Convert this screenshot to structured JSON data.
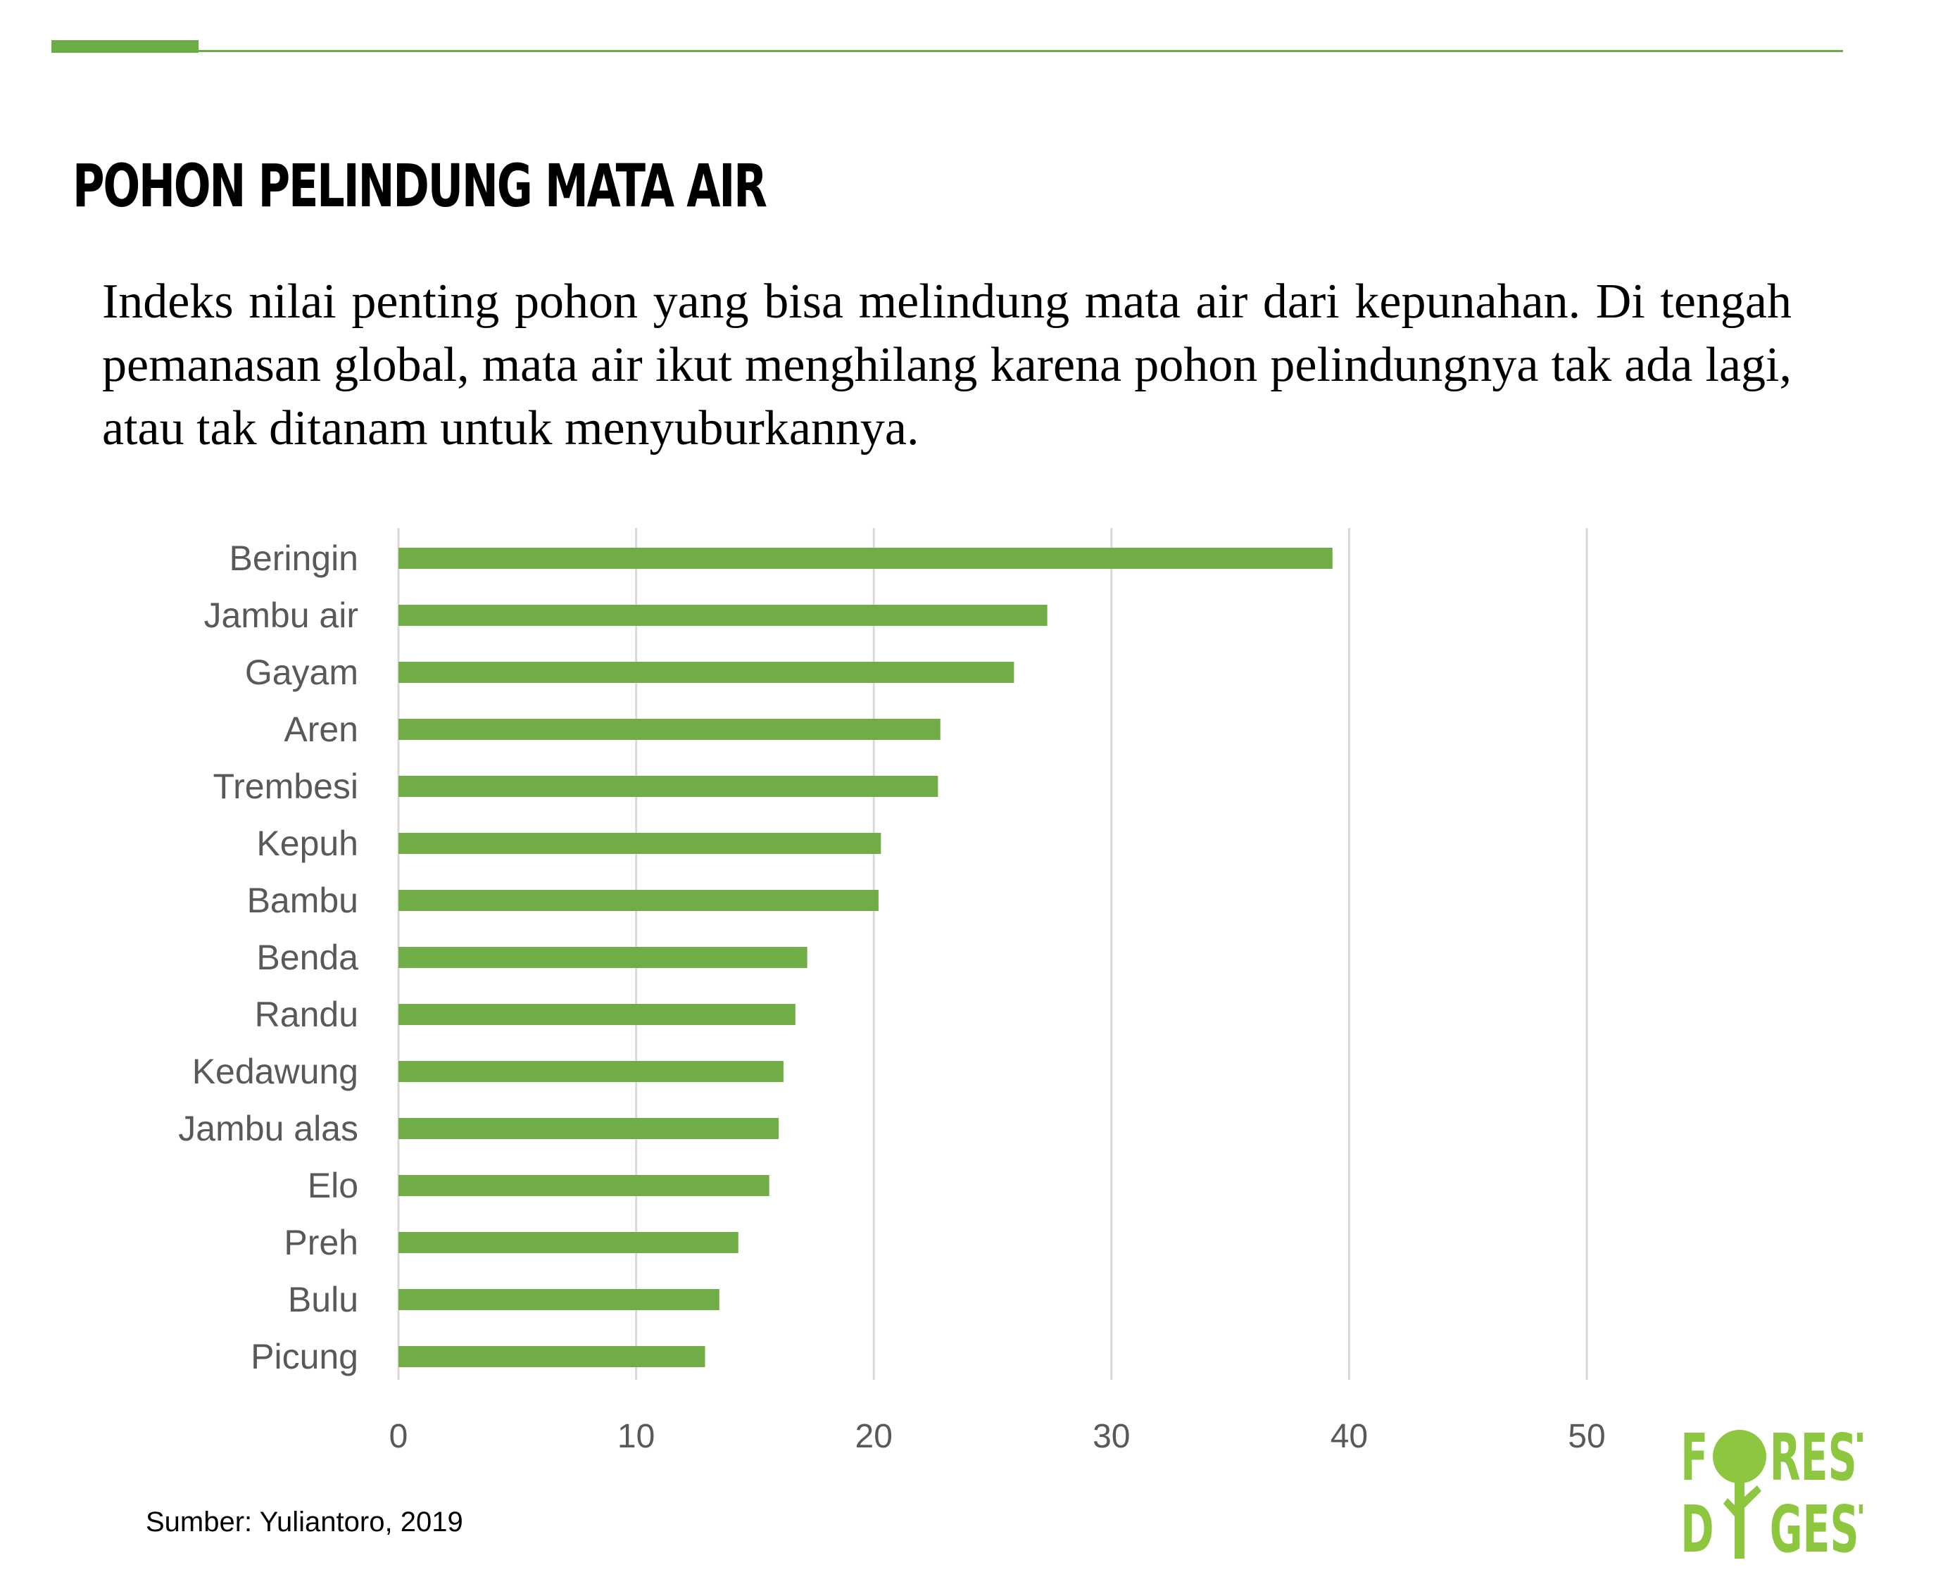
{
  "header": {
    "title": "POHON PELINDUNG MATA AIR",
    "subtitle": "Indeks nilai penting pohon yang bisa melindung mata air dari kepunahan. Di tengah pemanasan global, mata air ikut menghilang karena pohon pelindungnya tak ada lagi, atau tak ditanam untuk menyuburkannya."
  },
  "chart_data": {
    "type": "bar",
    "orientation": "horizontal",
    "title": "",
    "xlabel": "",
    "ylabel": "",
    "categories": [
      "Beringin",
      "Jambu air",
      "Gayam",
      "Aren",
      "Trembesi",
      "Kepuh",
      "Bambu",
      "Benda",
      "Randu",
      "Kedawung",
      "Jambu alas",
      "Elo",
      "Preh",
      "Bulu",
      "Picung"
    ],
    "values": [
      39.3,
      27.3,
      25.9,
      22.8,
      22.7,
      20.3,
      20.2,
      17.2,
      16.7,
      16.2,
      16.0,
      15.6,
      14.3,
      13.5,
      12.9
    ],
    "xlim": [
      0,
      50
    ],
    "xticks": [
      "0",
      "10",
      "20",
      "30",
      "40",
      "50"
    ],
    "grid": "vertical",
    "legend": "none",
    "bar_color": "#70ad47",
    "grid_color": "#d9d9d9",
    "label_color": "#595959"
  },
  "footer": {
    "source": "Sumber: Yuliantoro, 2019"
  },
  "logo": {
    "line1": "FOREST",
    "line2": "DIGEST",
    "color": "#8dc63f",
    "icon": "tree-icon"
  }
}
